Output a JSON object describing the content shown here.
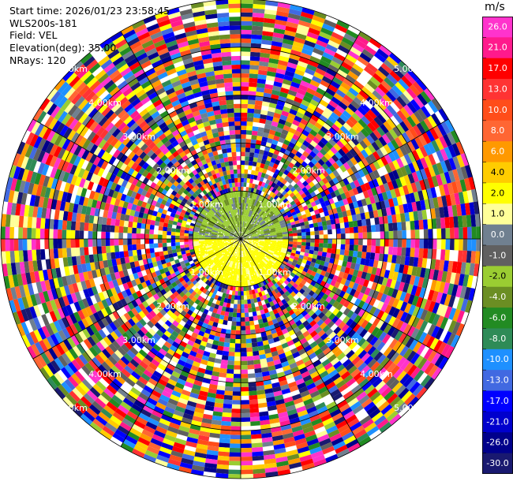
{
  "header": {
    "lines": [
      "Start time: 2026/01/23 23:58:45",
      "WLS200s-181",
      "Field: VEL",
      "Elevation(deg): 35.00",
      "NRays: 120"
    ]
  },
  "chart_data": {
    "type": "heatmap",
    "projection": "polar-ppi",
    "field": "VEL",
    "n_rays": 120,
    "range_rings_km": [
      1,
      2,
      3,
      4,
      5
    ],
    "range_labels": [
      "1.00km",
      "2.00km",
      "3.00km",
      "4.00km",
      "5.00km"
    ],
    "max_range_km": 5,
    "inner_signal_range_km": 1,
    "ring_label_angles_deg": [
      45,
      135,
      225,
      315
    ],
    "colorbar": {
      "unit": "m/s",
      "ticks": [
        "26.0",
        "21.0",
        "17.0",
        "13.0",
        "10.0",
        "8.0",
        "6.0",
        "4.0",
        "2.0",
        "1.0",
        "0.0",
        "-1.0",
        "-2.0",
        "-4.0",
        "-6.0",
        "-8.0",
        "-10.0",
        "-13.0",
        "-17.0",
        "-21.0",
        "-26.0",
        "-30.0"
      ],
      "colors": [
        "#ff33cc",
        "#ff1a8c",
        "#ff0000",
        "#ff3333",
        "#ff4d1a",
        "#ff6633",
        "#ff9900",
        "#ffcc00",
        "#ffff00",
        "#ffff99",
        "#708090",
        "#606060",
        "#9acd32",
        "#6b8e23",
        "#228b22",
        "#2e8b57",
        "#1e90ff",
        "#4169e1",
        "#0000ff",
        "#0000cd",
        "#00008b",
        "#191970"
      ]
    }
  }
}
